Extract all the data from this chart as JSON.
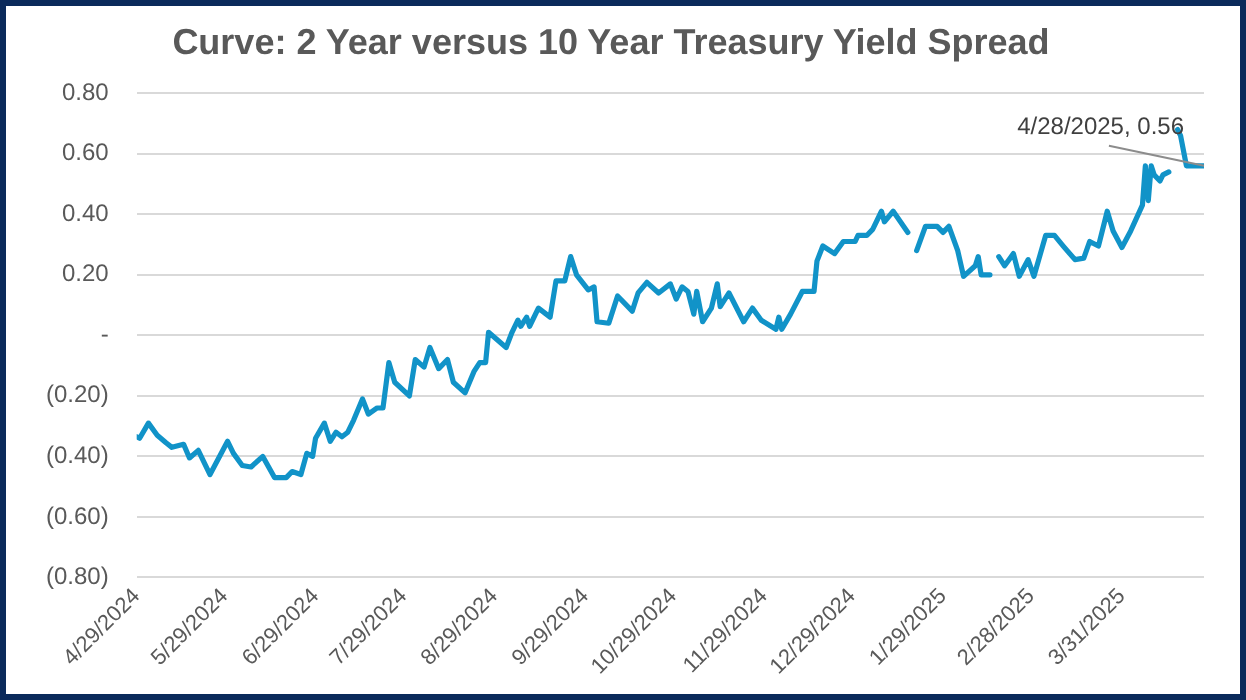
{
  "chart_data": {
    "type": "line",
    "title": "Curve: 2 Year versus 10 Year Treasury Yield Spread",
    "x": [
      "2024-04-29",
      "2024-04-30",
      "2024-05-03",
      "2024-05-06",
      "2024-05-09",
      "2024-05-11",
      "2024-05-15",
      "2024-05-17",
      "2024-05-20",
      "2024-05-24",
      "2024-05-30",
      "2024-06-01",
      "2024-06-04",
      "2024-06-07",
      "2024-06-11",
      "2024-06-15",
      "2024-06-19",
      "2024-06-21",
      "2024-06-24",
      "2024-06-26",
      "2024-06-28",
      "2024-06-29",
      "2024-07-02",
      "2024-07-04",
      "2024-07-06",
      "2024-07-08",
      "2024-07-10",
      "2024-07-12",
      "2024-07-15",
      "2024-07-17",
      "2024-07-20",
      "2024-07-22",
      "2024-07-24",
      "2024-07-26",
      "2024-07-31",
      "2024-08-02",
      "2024-08-05",
      "2024-08-07",
      "2024-08-10",
      "2024-08-13",
      "2024-08-15",
      "2024-08-19",
      "2024-08-22",
      "2024-08-24",
      "2024-08-26",
      "2024-08-27",
      "2024-09-02",
      "2024-09-04",
      "2024-09-06",
      "2024-09-07",
      "2024-09-09",
      "2024-09-10",
      "2024-09-13",
      "2024-09-17",
      "2024-09-19",
      "2024-09-22",
      "2024-09-24",
      "2024-09-26",
      "2024-09-30",
      "2024-10-02",
      "2024-10-03",
      "2024-10-07",
      "2024-10-10",
      "2024-10-15",
      "2024-10-17",
      "2024-10-20",
      "2024-10-24",
      "2024-10-28",
      "2024-10-30",
      "2024-11-01",
      "2024-11-03",
      "2024-11-05",
      "2024-11-06",
      "2024-11-08",
      "2024-11-11",
      "2024-11-13",
      "2024-11-14",
      "2024-11-17",
      "2024-11-22",
      "2024-11-25",
      "2024-11-28",
      "2024-12-03",
      "2024-12-04",
      "2024-12-05",
      "2024-12-08",
      "2024-12-12",
      "2024-12-16",
      "2024-12-17",
      "2024-12-19",
      "2024-12-23",
      "2024-12-26",
      "2024-12-30",
      "2024-12-31",
      "2025-01-03",
      "2025-01-05",
      "2025-01-08",
      "2025-01-09",
      "2025-01-12",
      "2025-01-17",
      "2025-01-18",
      "2025-01-20",
      "2025-01-23",
      "2025-01-27",
      "2025-01-29",
      "2025-01-31",
      "2025-02-03",
      "2025-02-05",
      "2025-02-09",
      "2025-02-10",
      "2025-02-11",
      "2025-02-14",
      "2025-02-15",
      "2025-02-17",
      "2025-02-19",
      "2025-02-22",
      "2025-02-24",
      "2025-02-27",
      "2025-03-01",
      "2025-03-05",
      "2025-03-08",
      "2025-03-11",
      "2025-03-15",
      "2025-03-18",
      "2025-03-20",
      "2025-03-23",
      "2025-03-26",
      "2025-03-28",
      "2025-03-31",
      "2025-04-03",
      "2025-04-07",
      "2025-04-08",
      "2025-04-09",
      "2025-04-10",
      "2025-04-11",
      "2025-04-13",
      "2025-04-14",
      "2025-04-16",
      "2025-04-17",
      "2025-04-19",
      "2025-04-20",
      "2025-04-22",
      "2025-04-28"
    ],
    "series": [
      {
        "color": "#1193c8",
        "values": [
          -0.335,
          -0.34,
          -0.29,
          -0.33,
          -0.355,
          -0.37,
          -0.36,
          -0.405,
          -0.38,
          -0.46,
          -0.35,
          -0.39,
          -0.43,
          -0.435,
          -0.4,
          -0.47,
          -0.47,
          -0.45,
          -0.46,
          -0.39,
          -0.4,
          -0.34,
          -0.29,
          -0.35,
          -0.32,
          -0.335,
          -0.32,
          -0.28,
          -0.21,
          -0.26,
          -0.24,
          -0.24,
          -0.09,
          -0.155,
          -0.2,
          -0.08,
          -0.105,
          -0.04,
          -0.11,
          -0.08,
          -0.155,
          -0.19,
          -0.12,
          -0.09,
          -0.09,
          0.01,
          -0.04,
          0.01,
          0.05,
          0.03,
          0.06,
          0.03,
          0.09,
          0.06,
          0.18,
          0.18,
          0.26,
          0.2,
          0.15,
          0.16,
          0.045,
          0.04,
          0.13,
          0.08,
          0.14,
          0.175,
          0.14,
          0.17,
          0.12,
          0.16,
          0.145,
          0.07,
          0.145,
          0.045,
          0.09,
          0.17,
          0.095,
          0.14,
          0.045,
          0.09,
          0.05,
          0.02,
          0.06,
          0.02,
          0.07,
          0.145,
          0.145,
          0.245,
          0.295,
          0.27,
          0.31,
          0.31,
          0.33,
          0.33,
          0.35,
          0.41,
          0.375,
          0.41,
          0.34,
          null,
          0.28,
          0.36,
          0.36,
          0.34,
          0.36,
          0.28,
          0.195,
          0.23,
          0.26,
          0.2,
          0.2,
          null,
          0.26,
          0.23,
          0.27,
          0.195,
          0.25,
          0.195,
          0.33,
          0.33,
          0.295,
          0.25,
          0.255,
          0.31,
          0.295,
          0.41,
          0.345,
          0.29,
          0.345,
          0.43,
          0.56,
          0.445,
          0.56,
          0.53,
          0.51,
          0.53,
          0.54,
          null,
          0.68,
          0.66,
          0.56,
          0.56
        ]
      }
    ],
    "xlim": [
      "2024-04-29",
      "2025-04-28"
    ],
    "xticks": [
      {
        "value": "2024-04-29",
        "label": "4/29/2024"
      },
      {
        "value": "2024-05-29",
        "label": "5/29/2024"
      },
      {
        "value": "2024-06-29",
        "label": "6/29/2024"
      },
      {
        "value": "2024-07-29",
        "label": "7/29/2024"
      },
      {
        "value": "2024-08-29",
        "label": "8/29/2024"
      },
      {
        "value": "2024-09-29",
        "label": "9/29/2024"
      },
      {
        "value": "2024-10-29",
        "label": "10/29/2024"
      },
      {
        "value": "2024-11-29",
        "label": "11/29/2024"
      },
      {
        "value": "2024-12-29",
        "label": "12/29/2024"
      },
      {
        "value": "2025-01-29",
        "label": "1/29/2025"
      },
      {
        "value": "2025-02-28",
        "label": "2/28/2025"
      },
      {
        "value": "2025-03-31",
        "label": "3/31/2025"
      }
    ],
    "ylim": [
      -0.8,
      0.8
    ],
    "yticks": [
      {
        "value": -0.8,
        "label": "(0.80)"
      },
      {
        "value": -0.6,
        "label": "(0.60)"
      },
      {
        "value": -0.4,
        "label": "(0.40)"
      },
      {
        "value": -0.2,
        "label": "(0.20)"
      },
      {
        "value": 0,
        "label": "-"
      },
      {
        "value": 0.2,
        "label": "0.20"
      },
      {
        "value": 0.4,
        "label": "0.40"
      },
      {
        "value": 0.6,
        "label": "0.60"
      },
      {
        "value": 0.8,
        "label": "0.80"
      }
    ],
    "grid": "y",
    "marker": "none",
    "line_style": "solid",
    "legend": false,
    "annotations": [
      {
        "text": "4/28/2025, 0.56",
        "x": "2025-04-28",
        "y": 0.56
      }
    ]
  }
}
